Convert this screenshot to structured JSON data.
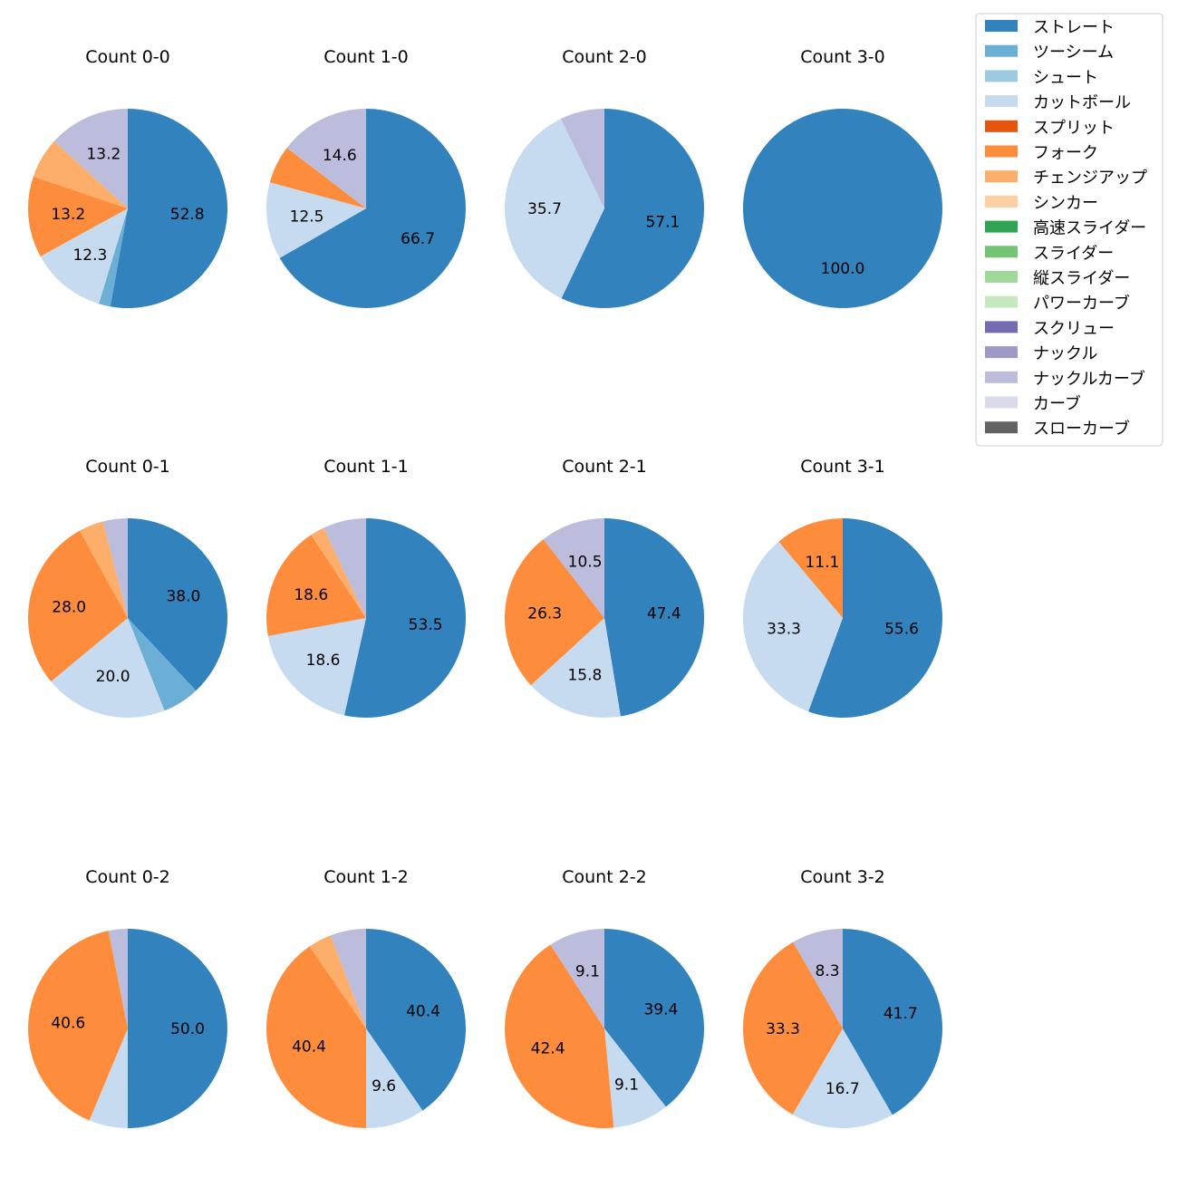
{
  "chart_data": {
    "type": "pie",
    "colors": {
      "ストレート": "#3182bd",
      "ツーシーム": "#6baed6",
      "シュート": "#9ecae1",
      "カットボール": "#c6dbef",
      "スプリット": "#e6550d",
      "フォーク": "#fd8d3c",
      "チェンジアップ": "#fdae6b",
      "シンカー": "#fdd0a2",
      "高速スライダー": "#31a354",
      "スライダー": "#74c476",
      "縦スライダー": "#a1d99b",
      "パワーカーブ": "#c7e9c0",
      "スクリュー": "#756bb1",
      "ナックル": "#9e9ac8",
      "ナックルカーブ": "#bcbddc",
      "カーブ": "#dadaeb",
      "スローカーブ": "#636363"
    },
    "legend": [
      "ストレート",
      "ツーシーム",
      "シュート",
      "カットボール",
      "スプリット",
      "フォーク",
      "チェンジアップ",
      "シンカー",
      "高速スライダー",
      "スライダー",
      "縦スライダー",
      "パワーカーブ",
      "スクリュー",
      "ナックル",
      "ナックルカーブ",
      "カーブ",
      "スローカーブ"
    ],
    "legend_position": "top-right",
    "charts": [
      {
        "title": "Count 0-0",
        "slices": [
          {
            "pitch": "ストレート",
            "value": 52.8,
            "label": "52.8"
          },
          {
            "pitch": "ツーシーム",
            "value": 1.9,
            "label": ""
          },
          {
            "pitch": "カットボール",
            "value": 12.3,
            "label": "12.3"
          },
          {
            "pitch": "フォーク",
            "value": 13.2,
            "label": "13.2"
          },
          {
            "pitch": "チェンジアップ",
            "value": 6.6,
            "label": ""
          },
          {
            "pitch": "ナックルカーブ",
            "value": 13.2,
            "label": "13.2"
          }
        ]
      },
      {
        "title": "Count 1-0",
        "slices": [
          {
            "pitch": "ストレート",
            "value": 66.7,
            "label": "66.7"
          },
          {
            "pitch": "カットボール",
            "value": 12.5,
            "label": "12.5"
          },
          {
            "pitch": "フォーク",
            "value": 6.2,
            "label": ""
          },
          {
            "pitch": "ナックルカーブ",
            "value": 14.6,
            "label": "14.6"
          }
        ]
      },
      {
        "title": "Count 2-0",
        "slices": [
          {
            "pitch": "ストレート",
            "value": 57.1,
            "label": "57.1"
          },
          {
            "pitch": "カットボール",
            "value": 35.7,
            "label": "35.7"
          },
          {
            "pitch": "ナックルカーブ",
            "value": 7.2,
            "label": ""
          }
        ]
      },
      {
        "title": "Count 3-0",
        "slices": [
          {
            "pitch": "ストレート",
            "value": 100.0,
            "label": "100.0"
          }
        ]
      },
      {
        "title": "Count 0-1",
        "slices": [
          {
            "pitch": "ストレート",
            "value": 38.0,
            "label": "38.0"
          },
          {
            "pitch": "ツーシーム",
            "value": 6.0,
            "label": ""
          },
          {
            "pitch": "カットボール",
            "value": 20.0,
            "label": "20.0"
          },
          {
            "pitch": "フォーク",
            "value": 28.0,
            "label": "28.0"
          },
          {
            "pitch": "チェンジアップ",
            "value": 4.0,
            "label": ""
          },
          {
            "pitch": "ナックルカーブ",
            "value": 4.0,
            "label": ""
          }
        ]
      },
      {
        "title": "Count 1-1",
        "slices": [
          {
            "pitch": "ストレート",
            "value": 53.5,
            "label": "53.5"
          },
          {
            "pitch": "カットボール",
            "value": 18.6,
            "label": "18.6"
          },
          {
            "pitch": "フォーク",
            "value": 18.6,
            "label": "18.6"
          },
          {
            "pitch": "チェンジアップ",
            "value": 2.3,
            "label": ""
          },
          {
            "pitch": "ナックルカーブ",
            "value": 7.0,
            "label": ""
          }
        ]
      },
      {
        "title": "Count 2-1",
        "slices": [
          {
            "pitch": "ストレート",
            "value": 47.4,
            "label": "47.4"
          },
          {
            "pitch": "カットボール",
            "value": 15.8,
            "label": "15.8"
          },
          {
            "pitch": "フォーク",
            "value": 26.3,
            "label": "26.3"
          },
          {
            "pitch": "ナックルカーブ",
            "value": 10.5,
            "label": "10.5"
          }
        ]
      },
      {
        "title": "Count 3-1",
        "slices": [
          {
            "pitch": "ストレート",
            "value": 55.6,
            "label": "55.6"
          },
          {
            "pitch": "カットボール",
            "value": 33.3,
            "label": "33.3"
          },
          {
            "pitch": "フォーク",
            "value": 11.1,
            "label": "11.1"
          }
        ]
      },
      {
        "title": "Count 0-2",
        "slices": [
          {
            "pitch": "ストレート",
            "value": 50.0,
            "label": "50.0"
          },
          {
            "pitch": "カットボール",
            "value": 6.3,
            "label": ""
          },
          {
            "pitch": "フォーク",
            "value": 40.6,
            "label": "40.6"
          },
          {
            "pitch": "ナックルカーブ",
            "value": 3.1,
            "label": ""
          }
        ]
      },
      {
        "title": "Count 1-2",
        "slices": [
          {
            "pitch": "ストレート",
            "value": 40.4,
            "label": "40.4"
          },
          {
            "pitch": "カットボール",
            "value": 9.6,
            "label": "9.6"
          },
          {
            "pitch": "フォーク",
            "value": 40.4,
            "label": "40.4"
          },
          {
            "pitch": "チェンジアップ",
            "value": 3.8,
            "label": ""
          },
          {
            "pitch": "ナックルカーブ",
            "value": 5.8,
            "label": ""
          }
        ]
      },
      {
        "title": "Count 2-2",
        "slices": [
          {
            "pitch": "ストレート",
            "value": 39.4,
            "label": "39.4"
          },
          {
            "pitch": "カットボール",
            "value": 9.1,
            "label": "9.1"
          },
          {
            "pitch": "フォーク",
            "value": 42.4,
            "label": "42.4"
          },
          {
            "pitch": "ナックルカーブ",
            "value": 9.1,
            "label": "9.1"
          }
        ]
      },
      {
        "title": "Count 3-2",
        "slices": [
          {
            "pitch": "ストレート",
            "value": 41.7,
            "label": "41.7"
          },
          {
            "pitch": "カットボール",
            "value": 16.7,
            "label": "16.7"
          },
          {
            "pitch": "フォーク",
            "value": 33.3,
            "label": "33.3"
          },
          {
            "pitch": "ナックルカーブ",
            "value": 8.3,
            "label": "8.3"
          }
        ]
      }
    ]
  }
}
